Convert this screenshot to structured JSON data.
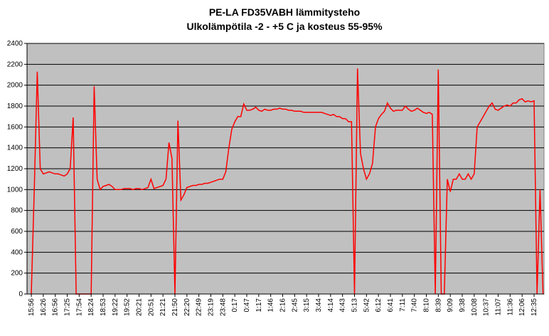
{
  "chart_data": {
    "type": "line",
    "title": "PE-LA FD35VABH lämmitysteho",
    "subtitle": "Ulkolämpötila -2 - +5 C ja kosteus 55-95%",
    "categories": [
      "15:56",
      null,
      null,
      null,
      "16:26",
      null,
      null,
      null,
      "16:56",
      null,
      null,
      null,
      "17:25",
      null,
      null,
      null,
      "17:54",
      null,
      null,
      null,
      "18:24",
      null,
      null,
      null,
      "18:53",
      null,
      null,
      null,
      "19:22",
      null,
      null,
      null,
      "19:52",
      null,
      null,
      null,
      "20:21",
      null,
      null,
      null,
      "20:51",
      null,
      null,
      null,
      "21:21",
      null,
      null,
      null,
      "21:50",
      null,
      null,
      null,
      "22:20",
      null,
      null,
      null,
      "22:49",
      null,
      null,
      null,
      "23:19",
      null,
      null,
      null,
      "23:48",
      null,
      null,
      null,
      "0:17",
      null,
      null,
      null,
      "0:47",
      null,
      null,
      null,
      "1:17",
      null,
      null,
      null,
      "1:46",
      null,
      null,
      null,
      "2:16",
      null,
      null,
      null,
      "2:45",
      null,
      null,
      null,
      "3:15",
      null,
      null,
      null,
      "3:44",
      null,
      null,
      null,
      "4:14",
      null,
      null,
      null,
      "4:43",
      null,
      null,
      null,
      "5:13",
      null,
      null,
      null,
      "5:42",
      null,
      null,
      null,
      "6:12",
      null,
      null,
      null,
      "6:41",
      null,
      null,
      null,
      "7:11",
      null,
      null,
      null,
      "7:40",
      null,
      null,
      null,
      "8:10",
      null,
      null,
      null,
      "8:39",
      null,
      null,
      null,
      "9:09",
      null,
      null,
      null,
      "9:38",
      null,
      null,
      null,
      "10:08",
      null,
      null,
      null,
      "10:37",
      null,
      null,
      null,
      "11:07",
      null,
      null,
      null,
      "11:36",
      null,
      null,
      null,
      "12:06",
      null,
      null,
      null,
      "12:35",
      null,
      null,
      null
    ],
    "series": [
      {
        "name": "lämmitysteho",
        "color": "#ff0000",
        "values": [
          0,
          1000,
          2130,
          1200,
          1150,
          1160,
          1170,
          1160,
          1150,
          1150,
          1140,
          1130,
          1150,
          1200,
          1690,
          0,
          0,
          0,
          0,
          0,
          0,
          1990,
          1100,
          1000,
          1030,
          1040,
          1050,
          1030,
          1000,
          1000,
          1000,
          1010,
          1010,
          1010,
          1000,
          1010,
          1010,
          1000,
          1010,
          1020,
          1100,
          1010,
          1020,
          1030,
          1040,
          1100,
          1450,
          1300,
          0,
          1660,
          900,
          950,
          1020,
          1030,
          1040,
          1040,
          1050,
          1050,
          1060,
          1060,
          1070,
          1080,
          1090,
          1100,
          1100,
          1170,
          1400,
          1580,
          1650,
          1700,
          1700,
          1820,
          1760,
          1760,
          1770,
          1790,
          1760,
          1750,
          1770,
          1760,
          1760,
          1770,
          1770,
          1780,
          1770,
          1770,
          1760,
          1760,
          1750,
          1750,
          1750,
          1740,
          1740,
          1740,
          1740,
          1740,
          1740,
          1740,
          1730,
          1720,
          1710,
          1720,
          1700,
          1700,
          1680,
          1680,
          1650,
          1650,
          0,
          2160,
          1350,
          1200,
          1100,
          1150,
          1250,
          1600,
          1680,
          1720,
          1750,
          1830,
          1780,
          1750,
          1760,
          1760,
          1760,
          1800,
          1770,
          1750,
          1760,
          1780,
          1760,
          1740,
          1730,
          1740,
          1720,
          0,
          2150,
          0,
          0,
          1100,
          980,
          1100,
          1100,
          1150,
          1100,
          1100,
          1150,
          1100,
          1150,
          1600,
          1650,
          1700,
          1750,
          1800,
          1830,
          1770,
          1760,
          1780,
          1800,
          1810,
          1800,
          1830,
          1830,
          1860,
          1870,
          1840,
          1850,
          1840,
          1850,
          0,
          1000,
          0
        ]
      }
    ],
    "ylim": [
      0,
      2400
    ],
    "yticks": [
      0,
      200,
      400,
      600,
      800,
      1000,
      1200,
      1400,
      1600,
      1800,
      2000,
      2200,
      2400
    ],
    "grid": true,
    "plot_background": "#c0c0c0"
  }
}
